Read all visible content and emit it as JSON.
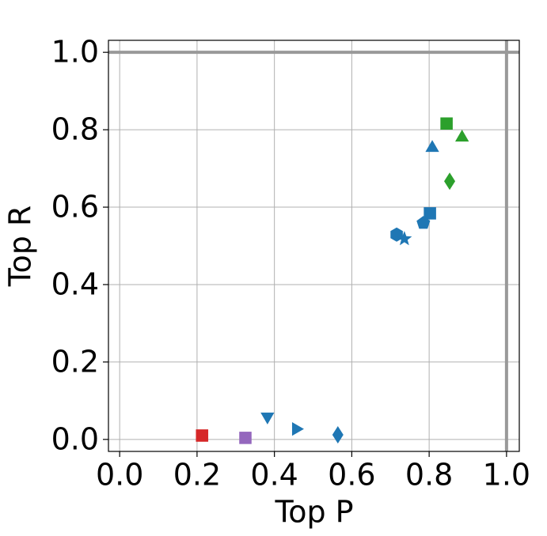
{
  "chart_data": {
    "type": "scatter",
    "x_label": "Top P",
    "y_label": "Top R",
    "xlim": [
      -0.029,
      1.033
    ],
    "ylim": [
      -0.031,
      1.031
    ],
    "xticks": [
      {
        "value": 0,
        "label": "0.0"
      },
      0.2,
      0.4,
      0.6,
      0.8,
      {
        "value": 1,
        "label": "1.0"
      }
    ],
    "yticks": [
      {
        "value": 0,
        "label": "0.0"
      },
      0.2,
      0.4,
      0.6,
      0.8,
      {
        "value": 1,
        "label": "1.0"
      }
    ],
    "grid": true,
    "reference_lines": {
      "x": [
        1
      ],
      "y": [
        1
      ],
      "color": "#999999"
    },
    "points": [
      {
        "x": 0.845,
        "y": 0.816,
        "color": "#2ca02c",
        "marker": "square"
      },
      {
        "x": 0.885,
        "y": 0.784,
        "color": "#2ca02c",
        "marker": "triangle-up"
      },
      {
        "x": 0.853,
        "y": 0.667,
        "color": "#2ca02c",
        "marker": "diamond"
      },
      {
        "x": 0.808,
        "y": 0.757,
        "color": "#1f77b4",
        "marker": "triangle-up"
      },
      {
        "x": 0.802,
        "y": 0.584,
        "color": "#1f77b4",
        "marker": "square"
      },
      {
        "x": 0.785,
        "y": 0.559,
        "color": "#1f77b4",
        "marker": "pentagon"
      },
      {
        "x": 0.716,
        "y": 0.529,
        "color": "#1f77b4",
        "marker": "hexagon"
      },
      {
        "x": 0.736,
        "y": 0.518,
        "color": "#1f77b4",
        "marker": "star"
      },
      {
        "x": 0.382,
        "y": 0.055,
        "color": "#1f77b4",
        "marker": "triangle-down"
      },
      {
        "x": 0.46,
        "y": 0.027,
        "color": "#1f77b4",
        "marker": "triangle-right"
      },
      {
        "x": 0.564,
        "y": 0.012,
        "color": "#1f77b4",
        "marker": "diamond"
      },
      {
        "x": 0.213,
        "y": 0.01,
        "color": "#d62728",
        "marker": "square"
      },
      {
        "x": 0.325,
        "y": 0.004,
        "color": "#9467bd",
        "marker": "square"
      }
    ]
  }
}
